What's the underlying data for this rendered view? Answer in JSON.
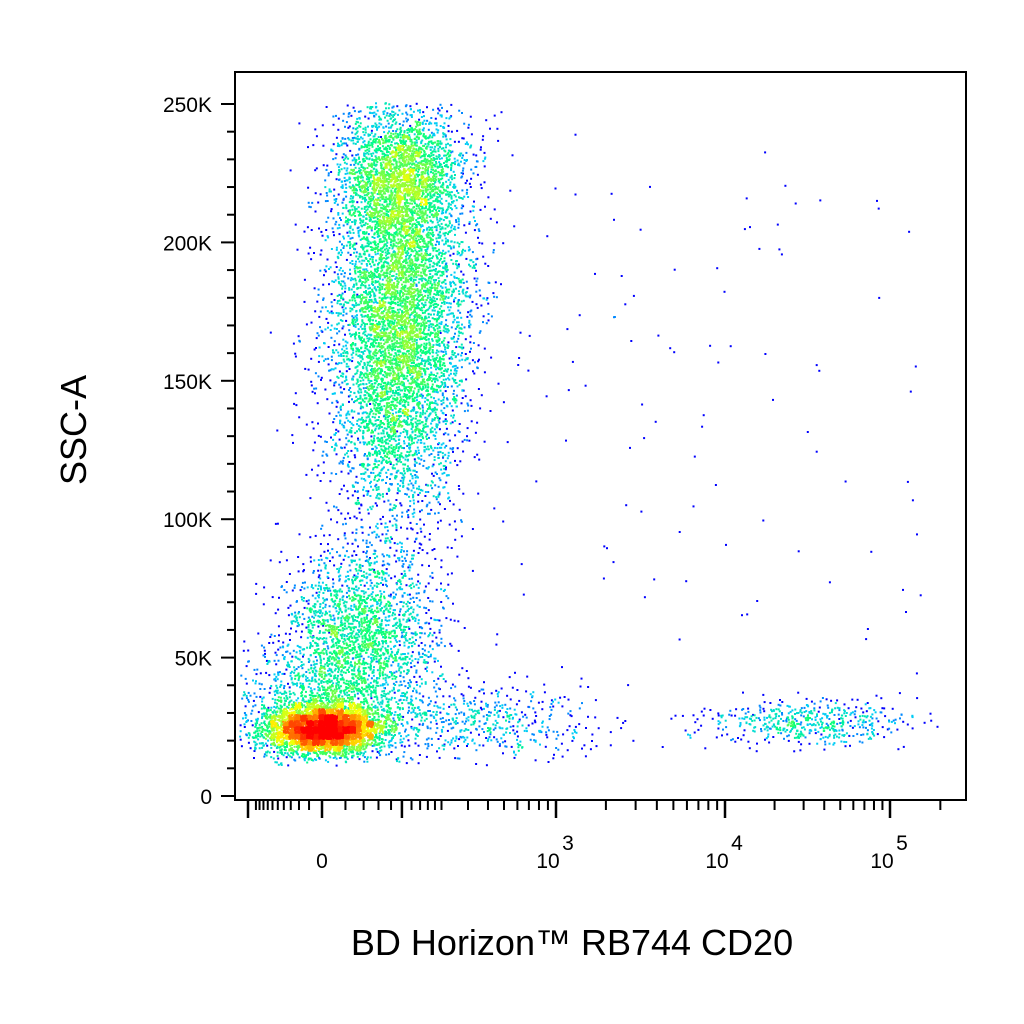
{
  "chart_data": {
    "type": "scatter",
    "title": "",
    "xlabel": "BD Horizon™ RB744 CD20",
    "ylabel": "SSC-A",
    "x_scale": "biexponential",
    "x_ticks": [
      {
        "value": 0,
        "label": "0",
        "exp": ""
      },
      {
        "value": 1000,
        "label": "10",
        "exp": "3"
      },
      {
        "value": 10000,
        "label": "10",
        "exp": "4"
      },
      {
        "value": 100000,
        "label": "10",
        "exp": "5"
      }
    ],
    "y_ticks": [
      {
        "value": 0,
        "label": "0"
      },
      {
        "value": 50000,
        "label": "50K"
      },
      {
        "value": 100000,
        "label": "100K"
      },
      {
        "value": 150000,
        "label": "150K"
      },
      {
        "value": 200000,
        "label": "200K"
      },
      {
        "value": 250000,
        "label": "250K"
      }
    ],
    "ylim": [
      0,
      262144
    ],
    "grid": false,
    "color_scale": [
      "#0000ff",
      "#00c8ff",
      "#00ff80",
      "#ffff00",
      "#ff0000"
    ],
    "populations": [
      {
        "name": "",
        "x_center": 25,
        "y_center": 25000,
        "density": "high"
      },
      {
        "name": "",
        "x_center": 180,
        "y_center": 60000,
        "density": "medium"
      },
      {
        "name": "",
        "x_center": 250,
        "y_center": 165000,
        "density": "high"
      },
      {
        "name": "",
        "x_center": 30000,
        "y_center": 27000,
        "density": "low"
      }
    ]
  }
}
